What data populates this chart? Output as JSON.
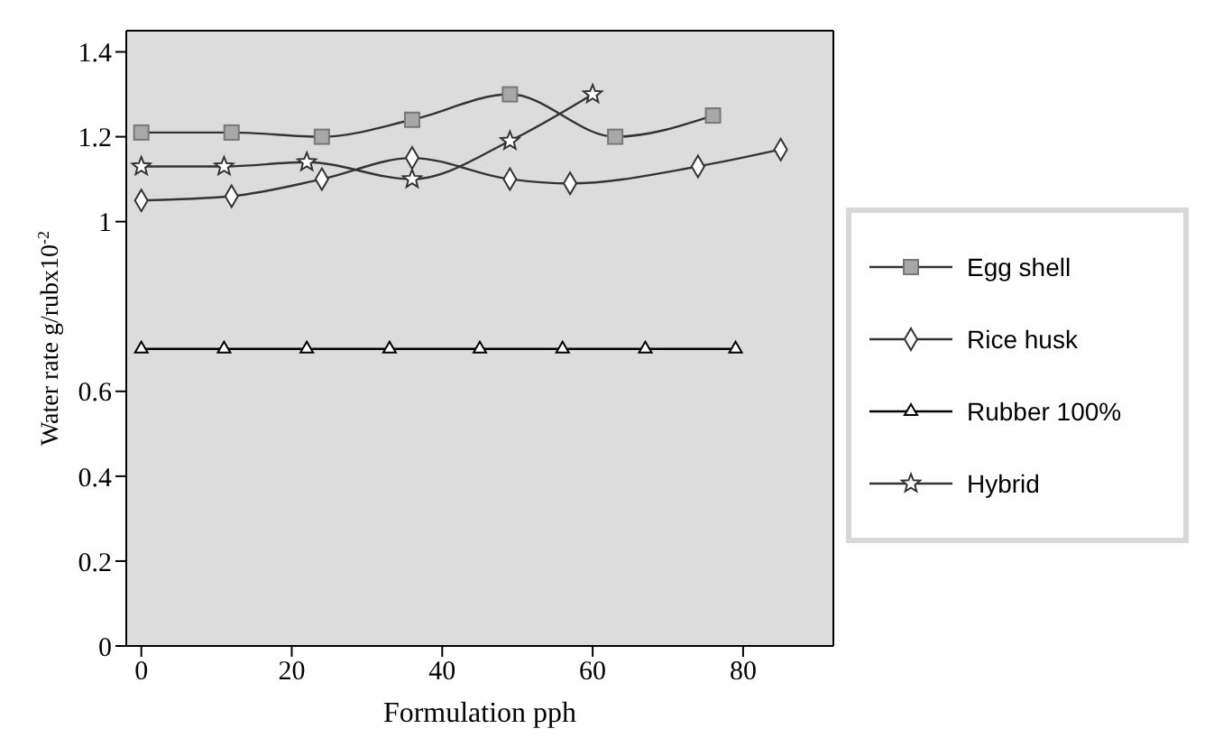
{
  "chart_data": {
    "type": "line",
    "xlabel": "Formulation pph",
    "ylabel": "Water rate g/rubx10$^{-2}$",
    "xlim": [
      -2,
      92
    ],
    "xticks": [
      0,
      20,
      40,
      60,
      80
    ],
    "ylim": [
      0,
      1.45
    ],
    "yticks": [
      0,
      0.2,
      0.4,
      0.6,
      1,
      1.2,
      1.4
    ],
    "legend": "right",
    "series": [
      {
        "name": "Egg shell",
        "color": "#333333",
        "marker": "square",
        "x": [
          0,
          12,
          24,
          36,
          49,
          63,
          76
        ],
        "values": [
          1.21,
          1.21,
          1.2,
          1.24,
          1.3,
          1.2,
          1.25
        ]
      },
      {
        "name": "Rice husk",
        "color": "#333333",
        "marker": "diamond",
        "x": [
          0,
          12,
          24,
          36,
          49,
          57,
          74,
          85
        ],
        "values": [
          1.05,
          1.06,
          1.1,
          1.15,
          1.1,
          1.09,
          1.13,
          1.17
        ]
      },
      {
        "name": "Rubber 100%",
        "color": "#000000",
        "marker": "triangle",
        "x": [
          0,
          11,
          22,
          33,
          45,
          56,
          67,
          79
        ],
        "values": [
          0.7,
          0.7,
          0.7,
          0.7,
          0.7,
          0.7,
          0.7,
          0.7
        ]
      },
      {
        "name": "Hybrid",
        "color": "#333333",
        "marker": "star",
        "x": [
          0,
          11,
          22,
          36,
          49,
          60
        ],
        "values": [
          1.13,
          1.13,
          1.14,
          1.1,
          1.19,
          1.3
        ]
      }
    ]
  }
}
